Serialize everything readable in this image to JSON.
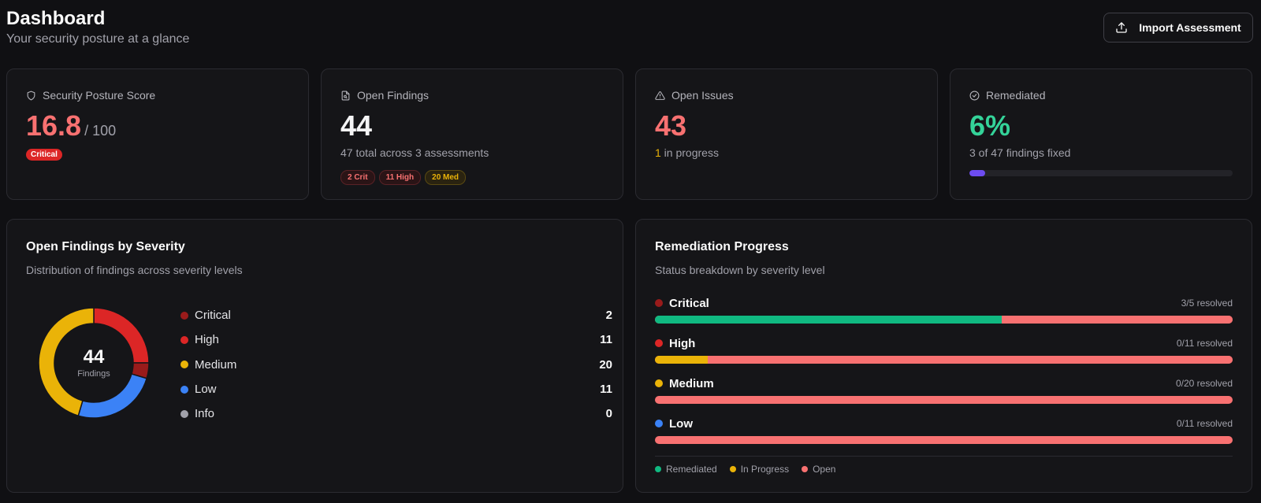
{
  "header": {
    "title": "Dashboard",
    "subtitle": "Your security posture at a glance",
    "import_label": "Import Assessment"
  },
  "stats": {
    "posture": {
      "label": "Security Posture Score",
      "value": "16.8",
      "suffix": "/ 100",
      "badge": "Critical",
      "icon": "shield-icon"
    },
    "findings": {
      "label": "Open Findings",
      "value": "44",
      "sub": "47 total across 3 assessments",
      "pills": [
        "2 Crit",
        "11 High",
        "20 Med"
      ],
      "icon": "file-search-icon"
    },
    "issues": {
      "label": "Open Issues",
      "value": "43",
      "sub_count": "1",
      "sub_text": " in progress",
      "icon": "alert-triangle-icon"
    },
    "remediated": {
      "label": "Remediated",
      "value": "6%",
      "sub": "3 of 47 findings fixed",
      "progress": 0.06,
      "icon": "check-circle-icon"
    }
  },
  "severity_card": {
    "title": "Open Findings by Severity",
    "desc": "Distribution of findings across severity levels",
    "total": "44",
    "total_label": "Findings",
    "items": [
      {
        "name": "Critical",
        "value": 2,
        "color": "#991b1b"
      },
      {
        "name": "High",
        "value": 11,
        "color": "#dc2626"
      },
      {
        "name": "Medium",
        "value": 20,
        "color": "#eab308"
      },
      {
        "name": "Low",
        "value": 11,
        "color": "#3b82f6"
      },
      {
        "name": "Info",
        "value": 0,
        "color": "#a1a1aa"
      }
    ]
  },
  "remediation_card": {
    "title": "Remediation Progress",
    "desc": "Status breakdown by severity level",
    "rows": [
      {
        "name": "Critical",
        "color": "#991b1b",
        "count": "3/5 resolved",
        "remediated": 3,
        "in_progress": 0,
        "open": 2
      },
      {
        "name": "High",
        "color": "#dc2626",
        "count": "0/11 resolved",
        "remediated": 0,
        "in_progress": 1,
        "open": 10
      },
      {
        "name": "Medium",
        "color": "#eab308",
        "count": "0/20 resolved",
        "remediated": 0,
        "in_progress": 0,
        "open": 20
      },
      {
        "name": "Low",
        "color": "#3b82f6",
        "count": "0/11 resolved",
        "remediated": 0,
        "in_progress": 0,
        "open": 11
      }
    ],
    "legend": [
      {
        "name": "Remediated",
        "color": "#10b981"
      },
      {
        "name": "In Progress",
        "color": "#eab308"
      },
      {
        "name": "Open",
        "color": "#f87171"
      }
    ]
  }
}
